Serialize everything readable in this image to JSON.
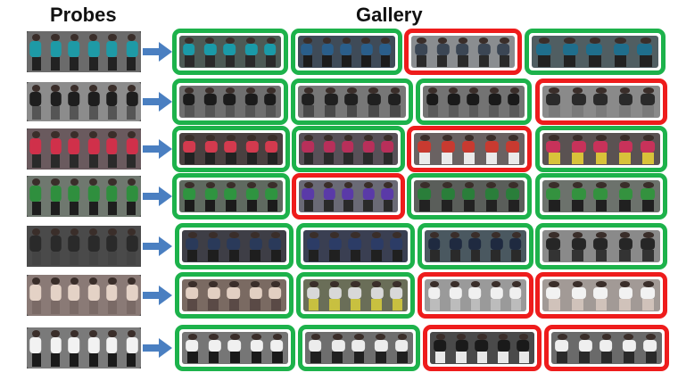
{
  "headings": {
    "probes": "Probes",
    "gallery": "Gallery"
  },
  "colors": {
    "correct_border": "#1db24b",
    "wrong_border": "#ee1c1c",
    "arrow": "#4a7fc1"
  },
  "rows": [
    {
      "probe": {
        "shirt": "#1e9aa6",
        "bottom": "#222222",
        "bg": "#6b6b6b"
      },
      "gallery": [
        {
          "match": true,
          "shirt": "#1a9aa8",
          "bottom": "#2a2a2a",
          "bg": "#4d5a55"
        },
        {
          "match": true,
          "shirt": "#2a5e8a",
          "bottom": "#1c1c1c",
          "bg": "#3f4b58"
        },
        {
          "match": false,
          "shirt": "#3b4654",
          "bottom": "#2a2a2a",
          "bg": "#8a8d90"
        },
        {
          "match": true,
          "shirt": "#1f6e8c",
          "bottom": "#222222",
          "bg": "#505e62"
        }
      ]
    },
    {
      "probe": {
        "shirt": "#1e1e1e",
        "bottom": "#555555",
        "bg": "#8c8c8c"
      },
      "gallery": [
        {
          "match": true,
          "shirt": "#1b1b1b",
          "bottom": "#555555",
          "bg": "#6f6f6f"
        },
        {
          "match": true,
          "shirt": "#202020",
          "bottom": "#4a4a4a",
          "bg": "#777777"
        },
        {
          "match": true,
          "shirt": "#1a1a1a",
          "bottom": "#5a5a5a",
          "bg": "#737373"
        },
        {
          "match": false,
          "shirt": "#2a2a2a",
          "bottom": "#7a7a7a",
          "bg": "#8a8a8a"
        }
      ]
    },
    {
      "probe": {
        "shirt": "#d0304a",
        "bottom": "#2a2a2a",
        "bg": "#6a5a5e"
      },
      "gallery": [
        {
          "match": true,
          "shirt": "#d33a4e",
          "bottom": "#222222",
          "bg": "#4a4040"
        },
        {
          "match": true,
          "shirt": "#b82f5a",
          "bottom": "#2a2a2a",
          "bg": "#585058"
        },
        {
          "match": false,
          "shirt": "#c83a30",
          "bottom": "#eaeaea",
          "bg": "#6a6262"
        },
        {
          "match": true,
          "shirt": "#c8325a",
          "bottom": "#d8c23a",
          "bg": "#5a5252"
        }
      ]
    },
    {
      "probe": {
        "shirt": "#2f8f3e",
        "bottom": "#1e1e1e",
        "bg": "#6f786f"
      },
      "gallery": [
        {
          "match": true,
          "shirt": "#2f9440",
          "bottom": "#1b1b1b",
          "bg": "#5f6a60"
        },
        {
          "match": false,
          "shirt": "#5a3aa8",
          "bottom": "#2a2a2a",
          "bg": "#6a6a76"
        },
        {
          "match": true,
          "shirt": "#2a7e3a",
          "bottom": "#222222",
          "bg": "#5a5e5a"
        },
        {
          "match": true,
          "shirt": "#34923f",
          "bottom": "#202020",
          "bg": "#6c726c"
        }
      ]
    },
    {
      "probe": {
        "shirt": "#2a2a2a",
        "bottom": "#444444",
        "bg": "#4a4a4a"
      },
      "gallery": [
        {
          "match": true,
          "shirt": "#2a3a5a",
          "bottom": "#1e1e1e",
          "bg": "#3e3e46"
        },
        {
          "match": true,
          "shirt": "#2c3c66",
          "bottom": "#202020",
          "bg": "#3a3f52"
        },
        {
          "match": true,
          "shirt": "#1f2a40",
          "bottom": "#2a2a2a",
          "bg": "#4a5860"
        },
        {
          "match": true,
          "shirt": "#262626",
          "bottom": "#333333",
          "bg": "#8a8a8a"
        }
      ]
    },
    {
      "probe": {
        "shirt": "#e4d2c6",
        "bottom": "#7a6a66",
        "bg": "#8a7a76"
      },
      "gallery": [
        {
          "match": true,
          "shirt": "#e2cfc2",
          "bottom": "#5a4a46",
          "bg": "#7a6a62"
        },
        {
          "match": true,
          "shirt": "#d8d8d8",
          "bottom": "#c8c040",
          "bg": "#6a6e58"
        },
        {
          "match": false,
          "shirt": "#f0f0f0",
          "bottom": "#bcbcbc",
          "bg": "#9a9a9a"
        },
        {
          "match": false,
          "shirt": "#f2f2f2",
          "bottom": "#d0c2ba",
          "bg": "#a29a96"
        }
      ]
    },
    {
      "probe": {
        "shirt": "#f2f2f2",
        "bottom": "#1a1a1a",
        "bg": "#7a7a7a"
      },
      "gallery": [
        {
          "match": true,
          "shirt": "#f0f0f0",
          "bottom": "#1a1a1a",
          "bg": "#767676"
        },
        {
          "match": true,
          "shirt": "#ececec",
          "bottom": "#202020",
          "bg": "#6e6e6e"
        },
        {
          "match": false,
          "shirt": "#1a1a1a",
          "bottom": "#e8e8e8",
          "bg": "#4a4a4a"
        },
        {
          "match": false,
          "shirt": "#efefef",
          "bottom": "#2a2a2a",
          "bg": "#6a6a6a"
        }
      ]
    }
  ]
}
